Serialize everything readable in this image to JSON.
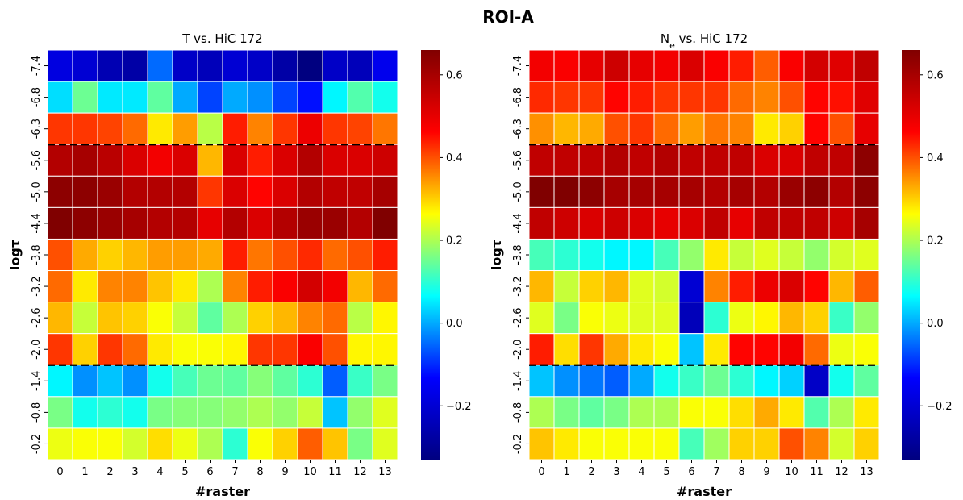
{
  "figure_title": "ROI-A",
  "colorscale": {
    "min": -0.33,
    "max": 0.66,
    "ticks": [
      0.6,
      0.4,
      0.2,
      0.0,
      -0.2
    ],
    "tick_labels": [
      "0.6",
      "0.4",
      "0.2",
      "0.0",
      "−0.2"
    ],
    "colors": [
      "#000080",
      "#0000ff",
      "#00ffff",
      "#ffff00",
      "#ff0000",
      "#800000"
    ]
  },
  "chart_data": [
    {
      "type": "heatmap",
      "title": "T vs. HiC 172",
      "xlabel": "#raster",
      "ylabel": "logτ",
      "x": [
        "0",
        "1",
        "2",
        "3",
        "4",
        "5",
        "6",
        "7",
        "8",
        "9",
        "10",
        "11",
        "12",
        "13"
      ],
      "y": [
        "-7.4",
        "-6.8",
        "-6.3",
        "-5.6",
        "-5.0",
        "-4.4",
        "-3.8",
        "-3.2",
        "-2.6",
        "-2.0",
        "-1.4",
        "-0.8",
        "-0.2"
      ],
      "separators_after_row": [
        2,
        9
      ],
      "values": [
        [
          -0.18,
          -0.2,
          -0.25,
          -0.27,
          -0.05,
          -0.22,
          -0.24,
          -0.2,
          -0.22,
          -0.27,
          -0.33,
          -0.22,
          -0.24,
          -0.16
        ],
        [
          0.04,
          0.15,
          0.05,
          0.05,
          0.14,
          0.0,
          -0.08,
          0.0,
          -0.02,
          -0.08,
          -0.12,
          0.06,
          0.13,
          0.08
        ],
        [
          0.42,
          0.42,
          0.41,
          0.38,
          0.28,
          0.34,
          0.21,
          0.44,
          0.36,
          0.42,
          0.49,
          0.42,
          0.41,
          0.37
        ],
        [
          0.58,
          0.6,
          0.57,
          0.52,
          0.48,
          0.52,
          0.32,
          0.52,
          0.44,
          0.52,
          0.58,
          0.52,
          0.52,
          0.54
        ],
        [
          0.64,
          0.64,
          0.62,
          0.58,
          0.58,
          0.58,
          0.42,
          0.52,
          0.46,
          0.52,
          0.58,
          0.56,
          0.56,
          0.6
        ],
        [
          0.66,
          0.64,
          0.62,
          0.6,
          0.58,
          0.58,
          0.5,
          0.58,
          0.52,
          0.58,
          0.62,
          0.62,
          0.58,
          0.66
        ],
        [
          0.4,
          0.33,
          0.3,
          0.32,
          0.34,
          0.34,
          0.33,
          0.44,
          0.37,
          0.4,
          0.43,
          0.38,
          0.4,
          0.44
        ],
        [
          0.38,
          0.28,
          0.36,
          0.36,
          0.31,
          0.28,
          0.2,
          0.36,
          0.44,
          0.47,
          0.53,
          0.48,
          0.32,
          0.38
        ],
        [
          0.32,
          0.22,
          0.31,
          0.3,
          0.26,
          0.22,
          0.14,
          0.2,
          0.3,
          0.32,
          0.36,
          0.38,
          0.21,
          0.27
        ],
        [
          0.42,
          0.3,
          0.42,
          0.38,
          0.28,
          0.26,
          0.26,
          0.27,
          0.42,
          0.42,
          0.47,
          0.4,
          0.27,
          0.27
        ],
        [
          0.06,
          -0.02,
          0.02,
          -0.02,
          0.08,
          0.12,
          0.15,
          0.14,
          0.17,
          0.14,
          0.1,
          -0.06,
          0.11,
          0.16
        ],
        [
          0.16,
          0.08,
          0.1,
          0.08,
          0.16,
          0.17,
          0.17,
          0.18,
          0.2,
          0.18,
          0.22,
          0.02,
          0.18,
          0.24
        ],
        [
          0.25,
          0.26,
          0.26,
          0.23,
          0.29,
          0.25,
          0.2,
          0.1,
          0.26,
          0.3,
          0.39,
          0.31,
          0.16,
          0.24
        ]
      ]
    },
    {
      "type": "heatmap",
      "title": "N",
      "title_sub": "e",
      "title_rest": " vs. HiC 172",
      "xlabel": "#raster",
      "ylabel": "logτ",
      "x": [
        "0",
        "1",
        "2",
        "3",
        "4",
        "5",
        "6",
        "7",
        "8",
        "9",
        "10",
        "11",
        "12",
        "13"
      ],
      "y": [
        "-7.4",
        "-6.8",
        "-6.3",
        "-5.6",
        "-5.0",
        "-4.4",
        "-3.8",
        "-3.2",
        "-2.6",
        "-2.0",
        "-1.4",
        "-0.8",
        "-0.2"
      ],
      "separators_after_row": [
        2,
        9
      ],
      "values": [
        [
          0.48,
          0.47,
          0.5,
          0.54,
          0.5,
          0.48,
          0.52,
          0.47,
          0.44,
          0.39,
          0.47,
          0.53,
          0.51,
          0.56
        ],
        [
          0.43,
          0.42,
          0.42,
          0.46,
          0.44,
          0.42,
          0.42,
          0.42,
          0.38,
          0.36,
          0.4,
          0.46,
          0.45,
          0.51
        ],
        [
          0.35,
          0.32,
          0.33,
          0.4,
          0.42,
          0.38,
          0.34,
          0.37,
          0.36,
          0.28,
          0.3,
          0.46,
          0.4,
          0.5
        ],
        [
          0.56,
          0.56,
          0.56,
          0.58,
          0.56,
          0.58,
          0.56,
          0.56,
          0.56,
          0.52,
          0.52,
          0.56,
          0.56,
          0.64
        ],
        [
          0.66,
          0.66,
          0.64,
          0.6,
          0.6,
          0.6,
          0.6,
          0.58,
          0.6,
          0.58,
          0.62,
          0.64,
          0.58,
          0.64
        ],
        [
          0.56,
          0.54,
          0.52,
          0.54,
          0.52,
          0.5,
          0.52,
          0.56,
          0.5,
          0.56,
          0.56,
          0.56,
          0.54,
          0.6
        ],
        [
          0.12,
          0.1,
          0.08,
          0.06,
          0.06,
          0.12,
          0.18,
          0.28,
          0.22,
          0.24,
          0.22,
          0.18,
          0.23,
          0.24
        ],
        [
          0.32,
          0.22,
          0.3,
          0.32,
          0.24,
          0.23,
          -0.2,
          0.36,
          0.44,
          0.49,
          0.52,
          0.46,
          0.32,
          0.39
        ],
        [
          0.24,
          0.16,
          0.26,
          0.25,
          0.24,
          0.24,
          -0.24,
          0.1,
          0.25,
          0.27,
          0.32,
          0.3,
          0.11,
          0.18
        ],
        [
          0.44,
          0.29,
          0.42,
          0.33,
          0.28,
          0.26,
          0.02,
          0.28,
          0.46,
          0.46,
          0.48,
          0.38,
          0.25,
          0.26
        ],
        [
          0.02,
          -0.02,
          -0.04,
          -0.06,
          0.0,
          0.08,
          0.11,
          0.15,
          0.1,
          0.06,
          0.03,
          -0.22,
          0.08,
          0.14
        ],
        [
          0.2,
          0.16,
          0.14,
          0.16,
          0.2,
          0.2,
          0.26,
          0.26,
          0.29,
          0.33,
          0.28,
          0.13,
          0.2,
          0.28
        ],
        [
          0.31,
          0.28,
          0.26,
          0.26,
          0.26,
          0.26,
          0.12,
          0.19,
          0.3,
          0.3,
          0.4,
          0.36,
          0.23,
          0.3
        ]
      ]
    }
  ]
}
